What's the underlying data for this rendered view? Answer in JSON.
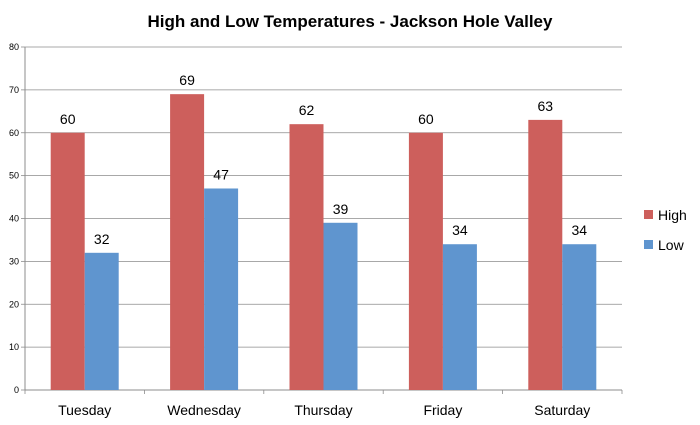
{
  "chart_data": {
    "type": "bar",
    "title": "High and Low Temperatures - Jackson Hole Valley",
    "categories": [
      "Tuesday",
      "Wednesday",
      "Thursday",
      "Friday",
      "Saturday"
    ],
    "series": [
      {
        "name": "High",
        "values": [
          60,
          69,
          62,
          60,
          63
        ],
        "color": "#cd5f5c"
      },
      {
        "name": "Low",
        "values": [
          32,
          47,
          39,
          34,
          34
        ],
        "color": "#5f95cf"
      }
    ],
    "xlabel": "",
    "ylabel": "",
    "ylim": [
      0,
      80
    ],
    "yticks": [
      "0",
      "10",
      "20",
      "30",
      "40",
      "50",
      "60",
      "70",
      "80"
    ],
    "grid": true,
    "legend_position": "right"
  }
}
